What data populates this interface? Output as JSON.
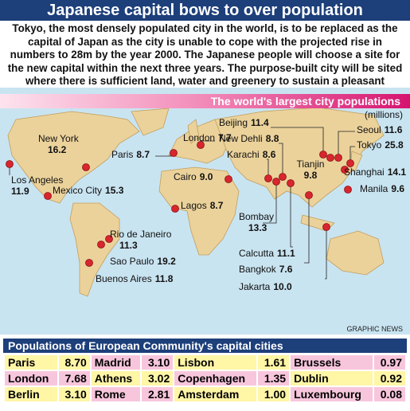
{
  "header": {
    "title": "Japanese capital bows to over population"
  },
  "intro": "Tokyo, the most densely populated city in the world, is to be replaced as the capital of Japan as the city is unable to cope with the projected rise in numbers to 28m by the year 2000. The Japanese people will choose a site for the new capital within the next three years. The purpose-built city will be sited where there is sufficient land, water and greenery to sustain a pleasant environment",
  "map": {
    "title": "The world's largest city populations",
    "unit": "(millions)",
    "cities": [
      {
        "name": "New York",
        "value": "16.2"
      },
      {
        "name": "London",
        "value": "7.7"
      },
      {
        "name": "Paris",
        "value": "8.7"
      },
      {
        "name": "Beijing",
        "value": "11.4"
      },
      {
        "name": "New Dehli",
        "value": "8.8"
      },
      {
        "name": "Karachi",
        "value": "8.6"
      },
      {
        "name": "Seoul",
        "value": "11.6"
      },
      {
        "name": "Tokyo",
        "value": "25.8"
      },
      {
        "name": "Tianjin",
        "value": "9.8"
      },
      {
        "name": "Shanghai",
        "value": "14.1"
      },
      {
        "name": "Manila",
        "value": "9.6"
      },
      {
        "name": "Cairo",
        "value": "9.0"
      },
      {
        "name": "Mexico City",
        "value": "15.3"
      },
      {
        "name": "Los Angeles",
        "value": "11.9"
      },
      {
        "name": "Lagos",
        "value": "8.7"
      },
      {
        "name": "Bombay",
        "value": "13.3"
      },
      {
        "name": "Calcutta",
        "value": "11.1"
      },
      {
        "name": "Bangkok",
        "value": "7.6"
      },
      {
        "name": "Jakarta",
        "value": "10.0"
      },
      {
        "name": "Rio de Janeiro",
        "value": "11.3"
      },
      {
        "name": "Sao Paulo",
        "value": "19.2"
      },
      {
        "name": "Buenos Aires",
        "value": "11.8"
      }
    ]
  },
  "credit": "GRAPHIC NEWS",
  "table": {
    "title": "Populations of European Community's capital cities",
    "rows": [
      [
        {
          "city": "Paris",
          "value": "8.70"
        },
        {
          "city": "Madrid",
          "value": "3.10"
        },
        {
          "city": "Lisbon",
          "value": "1.61"
        },
        {
          "city": "Brussels",
          "value": "0.97"
        }
      ],
      [
        {
          "city": "London",
          "value": "7.68"
        },
        {
          "city": "Athens",
          "value": "3.02"
        },
        {
          "city": "Copenhagen",
          "value": "1.35"
        },
        {
          "city": "Dublin",
          "value": "0.92"
        }
      ],
      [
        {
          "city": "Berlin",
          "value": "3.10"
        },
        {
          "city": "Rome",
          "value": "2.81"
        },
        {
          "city": "Amsterdam",
          "value": "1.00"
        },
        {
          "city": "Luxembourg",
          "value": "0.08"
        }
      ]
    ]
  }
}
